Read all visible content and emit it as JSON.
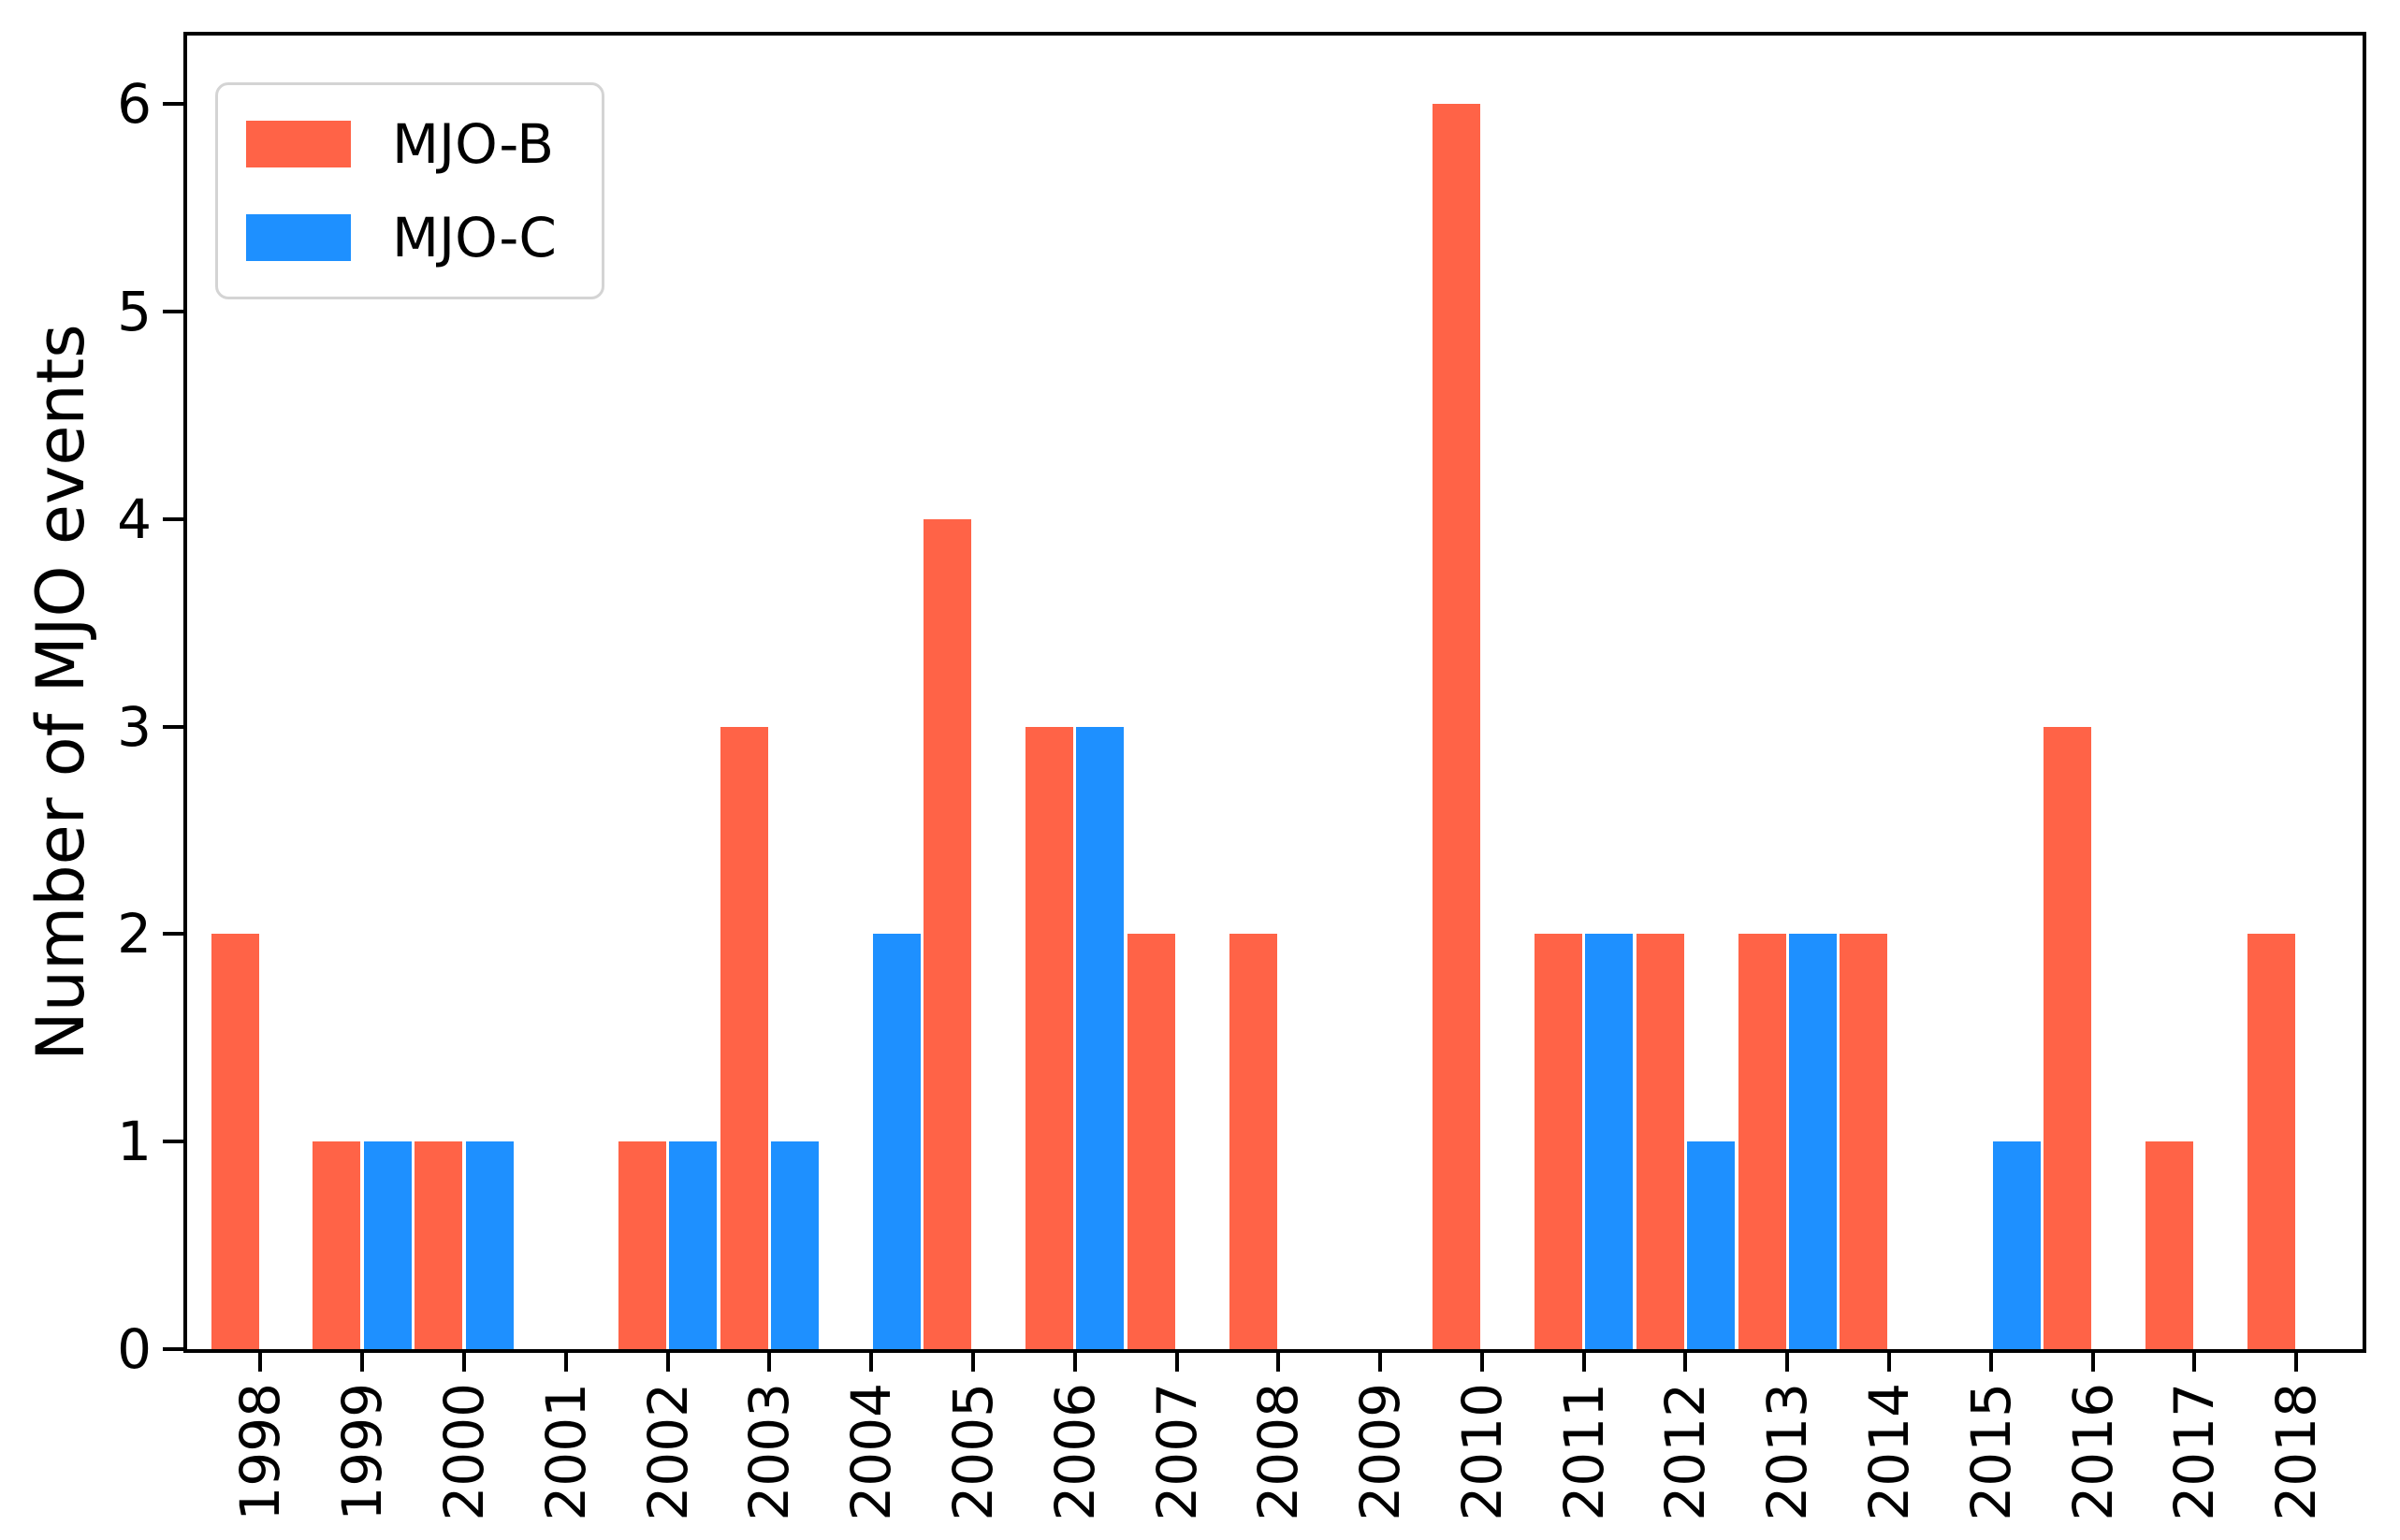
{
  "figure": {
    "background": "#ffffff",
    "axis_color": "#000000"
  },
  "chart_data": {
    "type": "bar",
    "title": "",
    "xlabel": "",
    "ylabel": "Number of MJO events",
    "categories": [
      1998,
      1999,
      2000,
      2001,
      2002,
      2003,
      2004,
      2005,
      2006,
      2007,
      2008,
      2009,
      2010,
      2011,
      2012,
      2013,
      2014,
      2015,
      2016,
      2017,
      2018
    ],
    "series": [
      {
        "name": "MJO-B",
        "color": "#ff6347",
        "values": [
          2,
          1,
          1,
          0,
          1,
          3,
          0,
          4,
          3,
          2,
          2,
          0,
          6,
          2,
          2,
          2,
          2,
          0,
          3,
          1,
          2
        ]
      },
      {
        "name": "MJO-C",
        "color": "#1e90ff",
        "values": [
          0,
          1,
          1,
          0,
          1,
          1,
          2,
          0,
          3,
          0,
          0,
          0,
          0,
          2,
          1,
          2,
          0,
          1,
          0,
          0,
          0
        ]
      }
    ],
    "yticks": [
      0,
      1,
      2,
      3,
      4,
      5,
      6
    ],
    "ylim": [
      0,
      6.33
    ],
    "xlim": [
      1997.28,
      2018.65
    ],
    "bar_width": 0.47,
    "bar_pair_gap": 0.015,
    "x_tick_rotation": 90,
    "grid": false,
    "legend_position": "upper left"
  }
}
